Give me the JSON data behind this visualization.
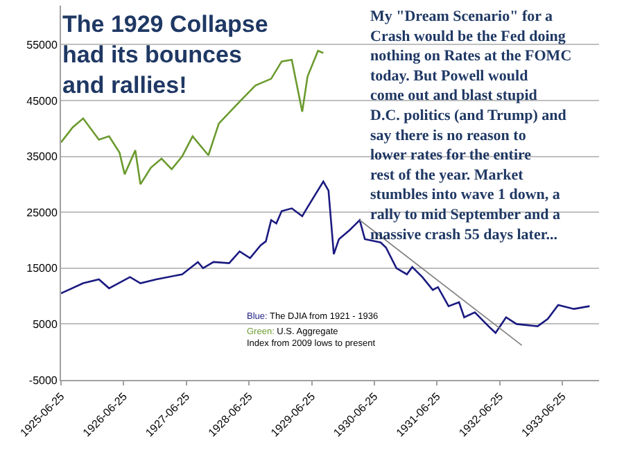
{
  "chart_data": {
    "type": "line",
    "title": "The 1929 Collapse\nhad its bounces\nand rallies!",
    "annotations": [
      "My \"Dream Scenario\" for a\nCrash would be the Fed doing\nnothing on Rates at the FOMC\ntoday. But Powell would\ncome out and blast stupid\nD.C. politics (and Trump) and\nsay there is no reason to\nlower rates for the entire\nrest of the year. Market\nstumbles into wave 1 down, a\nrally to mid September and a\nmassive crash 55 days later...",
      "Blue: The DJIA from 1921 - 1936",
      "Green: U.S. Aggregate\nIndex from 2009 lows to present"
    ],
    "series": [
      {
        "color": "#1a1a80",
        "x": [
          "1925-06-25",
          "1925-11",
          "1926-02",
          "1926-04",
          "1926-08",
          "1926-10",
          "1927-01",
          "1927-06",
          "1927-09",
          "1927-10",
          "1927-12",
          "1928-03",
          "1928-05",
          "1928-07",
          "1928-09",
          "1928-10",
          "1928-11",
          "1928-12",
          "1929-01",
          "1929-03",
          "1929-05",
          "1929-06",
          "1929-09",
          "1929-10",
          "1929-11",
          "1929-12",
          "1930-02",
          "1930-04",
          "1930-05",
          "1930-08",
          "1930-09",
          "1930-11",
          "1931-01",
          "1931-02",
          "1931-04",
          "1931-06",
          "1931-07",
          "1931-09",
          "1931-11",
          "1931-12",
          "1932-02",
          "1932-05",
          "1932-06",
          "1932-08",
          "1932-10",
          "1933-02",
          "1933-04",
          "1933-06",
          "1933-09",
          "1933-12"
        ],
        "values": [
          10500,
          12300,
          13000,
          11400,
          13400,
          12300,
          13000,
          13900,
          16100,
          15000,
          16100,
          15900,
          18000,
          16800,
          19100,
          19800,
          23600,
          23000,
          25200,
          25700,
          24300,
          25900,
          30500,
          28900,
          17500,
          20200,
          21800,
          23600,
          20200,
          19600,
          18700,
          15000,
          13900,
          15200,
          13400,
          11100,
          11600,
          8200,
          8900,
          6200,
          7100,
          4300,
          3400,
          6200,
          5000,
          4600,
          5900,
          8400,
          7700,
          8200
        ]
      },
      {
        "color": "#6b9a2e",
        "x": [
          "1925-06-25",
          "1925-09",
          "1925-11",
          "1926-02",
          "1926-04",
          "1926-06",
          "1926-07",
          "1926-09",
          "1926-10",
          "1926-12",
          "1927-02",
          "1927-04",
          "1927-06",
          "1927-08",
          "1927-11",
          "1928-01",
          "1928-05",
          "1928-08",
          "1928-11",
          "1929-01",
          "1929-03",
          "1929-05",
          "1929-06",
          "1929-08",
          "1929-09"
        ],
        "values": [
          37500,
          40200,
          41800,
          38000,
          38600,
          35700,
          31800,
          36100,
          30000,
          33000,
          34600,
          32700,
          35000,
          38600,
          35200,
          40900,
          44800,
          47700,
          48900,
          52000,
          52300,
          43000,
          49300,
          53900,
          53500
        ]
      },
      {
        "color": "#808080",
        "x": [
          "1930-04",
          "1932-11"
        ],
        "values": [
          23600,
          1200
        ]
      }
    ],
    "xlim": [
      "1925-06-25",
      "1934-01-25"
    ],
    "xticks": [
      "1925-06-25",
      "1926-06-25",
      "1927-06-25",
      "1928-06-25",
      "1929-06-25",
      "1930-06-25",
      "1931-06-25",
      "1932-06-25",
      "1933-06-25"
    ],
    "ylim": [
      -5000,
      62000
    ],
    "yticks": [
      -5000,
      5000,
      15000,
      25000,
      35000,
      45000,
      55000
    ],
    "grid": "y",
    "marker": "none",
    "line_style": "solid"
  }
}
